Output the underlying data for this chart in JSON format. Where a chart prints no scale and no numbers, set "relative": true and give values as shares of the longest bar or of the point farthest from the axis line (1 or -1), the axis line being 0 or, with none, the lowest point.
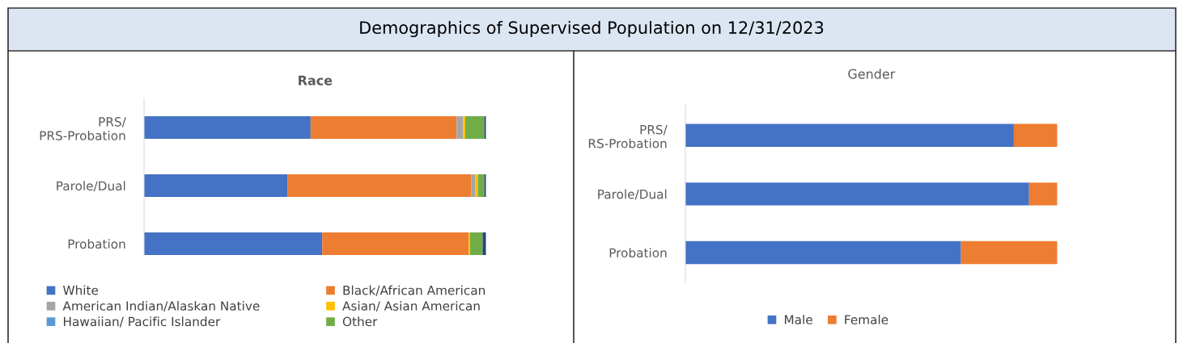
{
  "chart_data": [
    {
      "type": "bar",
      "orientation": "horizontal",
      "stacked": true,
      "relative": true,
      "title": "Race",
      "annotations": [
        "Demographics of Supervised Population on 12/31/2023"
      ],
      "categories": [
        "PRS/\nPRS-Probation",
        "Parole/Dual",
        "Probation"
      ],
      "legend": "bottom",
      "series": [
        {
          "name": "White",
          "color": "#4472c4",
          "values": [
            0.487,
            0.42,
            0.521
          ]
        },
        {
          "name": "Black/African American",
          "color": "#ed7d31",
          "values": [
            0.427,
            0.537,
            0.428
          ]
        },
        {
          "name": "American Indian/Alaskan Native",
          "color": "#a5a5a5",
          "values": [
            0.019,
            0.012,
            null
          ]
        },
        {
          "name": "Asian/ Asian American",
          "color": "#ffc000",
          "values": [
            0.006,
            0.007,
            0.004
          ]
        },
        {
          "name": "Hawaiian/ Pacific Islander",
          "color": "#5b9bd5",
          "values": [
            null,
            null,
            null
          ]
        },
        {
          "name": "Other",
          "color": "#70ad47",
          "values": [
            0.056,
            0.019,
            0.037
          ]
        },
        {
          "color": "#264478",
          "values": [
            0.005,
            0.005,
            0.01
          ]
        }
      ]
    },
    {
      "type": "bar",
      "orientation": "horizontal",
      "stacked": true,
      "relative": true,
      "title": "Gender",
      "categories": [
        "PRS/\nRS-Probation",
        "Parole/Dual",
        "Probation"
      ],
      "legend": "bottom",
      "series": [
        {
          "name": "Male",
          "color": "#4472c4",
          "values": [
            0.883,
            0.924,
            0.741
          ]
        },
        {
          "name": "Female",
          "color": "#ed7d31",
          "values": [
            0.117,
            0.076,
            0.259
          ]
        }
      ]
    }
  ]
}
